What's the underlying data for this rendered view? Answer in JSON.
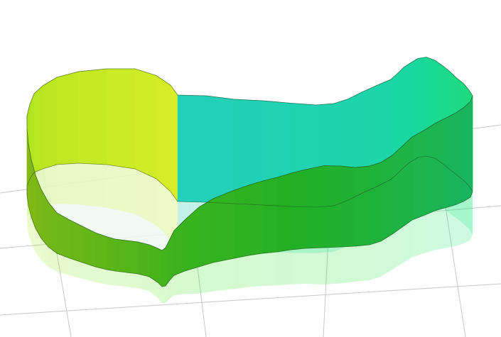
{
  "chart_data": {
    "type": "area",
    "title": "",
    "grid": true,
    "reflection": true,
    "colors": {
      "background": "#ffffff",
      "grid": "#c8c8c8",
      "outline": "#1a3a1a",
      "floor_inside": "#eef8f2",
      "gradient_stops": [
        "#23d0b9",
        "#19d8a0",
        "#1fdc6a",
        "#2bd72c",
        "#59dc1f",
        "#9ee01c",
        "#d8ee28"
      ]
    },
    "wall_color_scale": "path-position",
    "wall_height_scale": "relative",
    "series": [
      {
        "values": [
          1.0,
          1.0,
          0.98,
          0.98,
          0.97,
          0.96,
          0.96,
          0.95,
          0.95,
          0.95,
          0.94,
          0.94,
          0.94,
          0.93,
          0.93,
          0.93,
          0.92,
          0.92,
          0.92,
          0.91,
          0.91,
          0.9,
          0.9,
          0.9,
          0.88,
          0.86,
          0.84,
          0.82,
          0.8,
          0.78,
          0.76,
          0.74,
          0.74,
          0.74,
          0.74,
          0.76,
          0.77,
          0.74,
          0.72,
          0.7,
          0.68,
          0.66,
          0.64,
          0.6,
          0.56,
          0.48,
          0.42,
          0.38,
          0.36,
          0.34,
          0.32,
          0.3,
          0.3,
          0.3,
          0.3,
          0.31,
          0.32,
          0.34,
          0.36,
          0.38,
          0.42,
          0.46,
          0.5,
          0.54,
          0.58,
          0.62,
          0.66,
          0.7,
          0.74,
          0.78,
          0.82,
          0.86,
          0.9,
          0.94,
          0.97,
          1.0
        ]
      }
    ]
  }
}
